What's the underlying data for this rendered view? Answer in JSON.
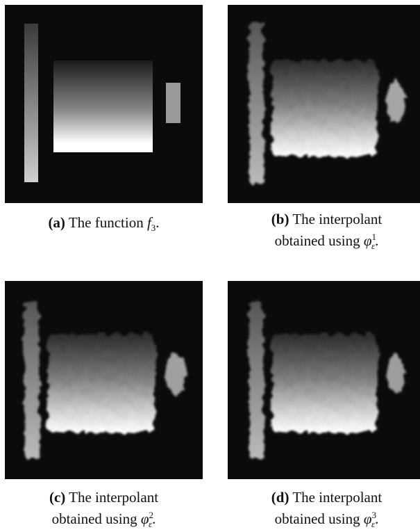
{
  "figure": {
    "panels": [
      {
        "id": "a",
        "label": "(a)",
        "caption": "The function",
        "symbol": "f",
        "symbol_sub": "3",
        "end": "."
      },
      {
        "id": "b",
        "label": "(b)",
        "caption_line1": "The interpolant",
        "caption_line2": "obtained using",
        "symbol": "φ",
        "symbol_sub": "ε",
        "symbol_sup": "1",
        "end": "."
      },
      {
        "id": "c",
        "label": "(c)",
        "caption_line1": "The interpolant",
        "caption_line2": "obtained using",
        "symbol": "φ",
        "symbol_sub": "ε",
        "symbol_sup": "2",
        "end": "."
      },
      {
        "id": "d",
        "label": "(d)",
        "caption_line1": "The interpolant",
        "caption_line2": "obtained using",
        "symbol": "φ",
        "symbol_sub": "ε",
        "symbol_sup": "3",
        "end": "."
      }
    ]
  }
}
